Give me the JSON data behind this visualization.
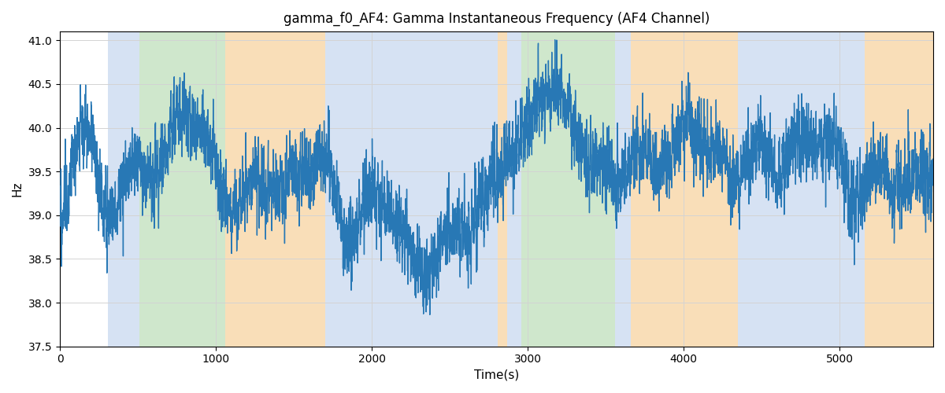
{
  "title": "gamma_f0_AF4: Gamma Instantaneous Frequency (AF4 Channel)",
  "xlabel": "Time(s)",
  "ylabel": "Hz",
  "xlim": [
    0,
    5600
  ],
  "ylim": [
    37.5,
    41.1
  ],
  "line_color": "#2878b5",
  "line_width": 1.0,
  "figsize": [
    12,
    5
  ],
  "dpi": 100,
  "colored_bands": [
    {
      "xmin": 310,
      "xmax": 510,
      "color": "#aec6e8",
      "alpha": 0.5
    },
    {
      "xmin": 510,
      "xmax": 1060,
      "color": "#a8d5a2",
      "alpha": 0.55
    },
    {
      "xmin": 1060,
      "xmax": 1700,
      "color": "#f5c98a",
      "alpha": 0.6
    },
    {
      "xmin": 1700,
      "xmax": 1810,
      "color": "#aec6e8",
      "alpha": 0.5
    },
    {
      "xmin": 1810,
      "xmax": 2810,
      "color": "#aec6e8",
      "alpha": 0.5
    },
    {
      "xmin": 2810,
      "xmax": 2870,
      "color": "#f5c98a",
      "alpha": 0.6
    },
    {
      "xmin": 2870,
      "xmax": 2960,
      "color": "#aec6e8",
      "alpha": 0.5
    },
    {
      "xmin": 2960,
      "xmax": 3560,
      "color": "#a8d5a2",
      "alpha": 0.55
    },
    {
      "xmin": 3560,
      "xmax": 3660,
      "color": "#aec6e8",
      "alpha": 0.5
    },
    {
      "xmin": 3660,
      "xmax": 4350,
      "color": "#f5c98a",
      "alpha": 0.6
    },
    {
      "xmin": 4350,
      "xmax": 5085,
      "color": "#aec6e8",
      "alpha": 0.5
    },
    {
      "xmin": 5085,
      "xmax": 5160,
      "color": "#aec6e8",
      "alpha": 0.5
    },
    {
      "xmin": 5160,
      "xmax": 5600,
      "color": "#f5c98a",
      "alpha": 0.6
    }
  ],
  "yticks": [
    37.5,
    38.0,
    38.5,
    39.0,
    39.5,
    40.0,
    40.5,
    41.0
  ],
  "xticks": [
    0,
    1000,
    2000,
    3000,
    4000,
    5000
  ]
}
